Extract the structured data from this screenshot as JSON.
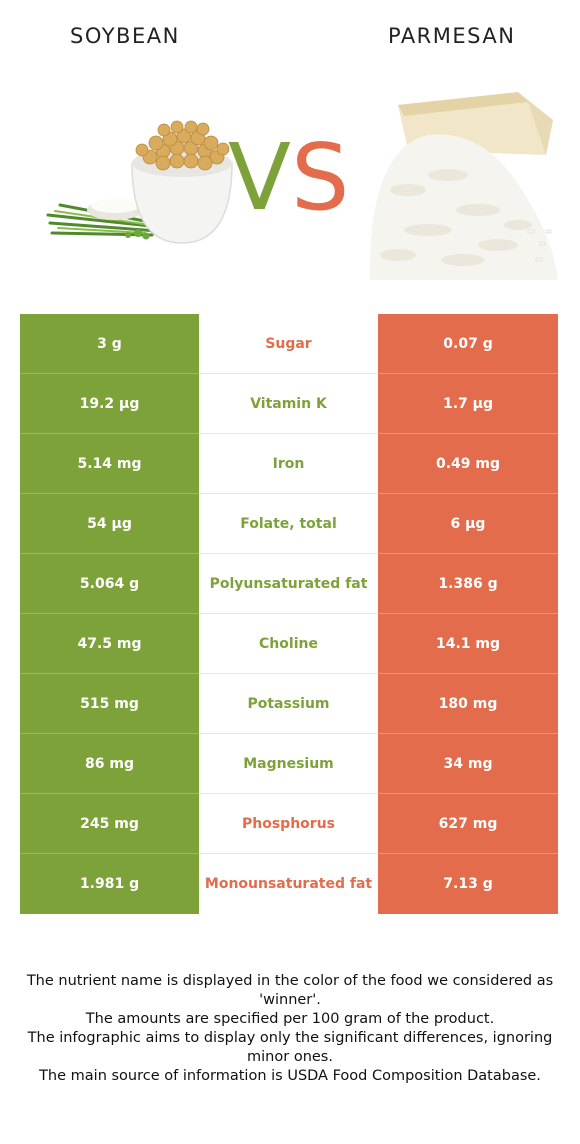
{
  "header": {
    "left_food": "SOYBEAN",
    "right_food": "PARMESAN",
    "vs_v": "V",
    "vs_s": "S"
  },
  "colors": {
    "left_accent": "#7ea23a",
    "right_accent": "#e26c4c"
  },
  "rows": [
    {
      "left": "3 g",
      "nutrient": "Sugar",
      "right": "0.07 g",
      "winner": "right"
    },
    {
      "left": "19.2 µg",
      "nutrient": "Vitamin K",
      "right": "1.7 µg",
      "winner": "left"
    },
    {
      "left": "5.14 mg",
      "nutrient": "Iron",
      "right": "0.49 mg",
      "winner": "left"
    },
    {
      "left": "54 µg",
      "nutrient": "Folate, total",
      "right": "6 µg",
      "winner": "left"
    },
    {
      "left": "5.064 g",
      "nutrient": "Polyunsaturated fat",
      "right": "1.386 g",
      "winner": "left"
    },
    {
      "left": "47.5 mg",
      "nutrient": "Choline",
      "right": "14.1 mg",
      "winner": "left"
    },
    {
      "left": "515 mg",
      "nutrient": "Potassium",
      "right": "180 mg",
      "winner": "left"
    },
    {
      "left": "86 mg",
      "nutrient": "Magnesium",
      "right": "34 mg",
      "winner": "left"
    },
    {
      "left": "245 mg",
      "nutrient": "Phosphorus",
      "right": "627 mg",
      "winner": "right"
    },
    {
      "left": "1.981 g",
      "nutrient": "Monounsaturated fat",
      "right": "7.13 g",
      "winner": "right"
    }
  ],
  "footnote": {
    "line1": "The nutrient name is displayed in the color of the food we considered as 'winner'.",
    "line2": "The amounts are specified per 100 gram of the product.",
    "line3": "The infographic aims to display only the significant differences, ignoring minor ones.",
    "line4": "The main source of information is USDA Food Composition Database."
  }
}
